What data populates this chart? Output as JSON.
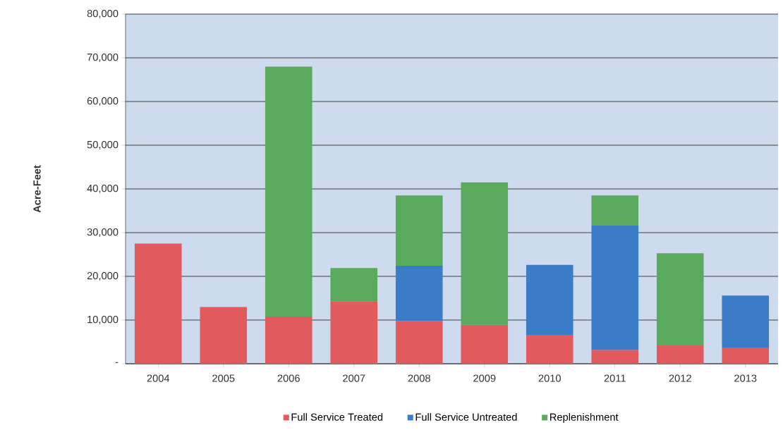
{
  "chart_data": {
    "type": "bar",
    "stacked": true,
    "ylabel": "Acre-Feet",
    "categories": [
      "2004",
      "2005",
      "2006",
      "2007",
      "2008",
      "2009",
      "2010",
      "2011",
      "2012",
      "2013"
    ],
    "series": [
      {
        "name": "Full Service Treated",
        "color": "#e05a5e",
        "values": [
          27500,
          13000,
          10800,
          14300,
          9800,
          8900,
          6600,
          3200,
          4200,
          3700
        ]
      },
      {
        "name": "Full Service Untreated",
        "color": "#3a7cc8",
        "values": [
          null,
          null,
          null,
          null,
          12600,
          null,
          16000,
          28400,
          null,
          11900
        ]
      },
      {
        "name": "Replenishment",
        "color": "#5aaa5e",
        "values": [
          null,
          null,
          57200,
          7600,
          16100,
          32600,
          null,
          6900,
          21100,
          null
        ]
      }
    ],
    "ylim": [
      0,
      80000
    ],
    "yticks": [
      {
        "value": 0,
        "label": "-"
      },
      {
        "value": 10000,
        "label": "10,000"
      },
      {
        "value": 20000,
        "label": "20,000"
      },
      {
        "value": 30000,
        "label": "30,000"
      },
      {
        "value": 40000,
        "label": "40,000"
      },
      {
        "value": 50000,
        "label": "50,000"
      },
      {
        "value": 60000,
        "label": "60,000"
      },
      {
        "value": 70000,
        "label": "70,000"
      },
      {
        "value": 80000,
        "label": "80,000"
      }
    ],
    "grid": "y",
    "legend": "bottom"
  }
}
